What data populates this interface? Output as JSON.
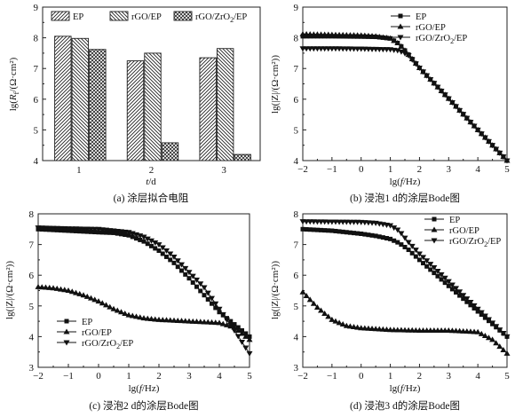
{
  "chart_data": [
    {
      "type": "bar",
      "caption": "(a) 涂层拟合电阻",
      "xlabel_parts": [
        "t",
        "/d"
      ],
      "ylabel_parts": [
        "lg(",
        "R",
        "f",
        "/(Ω·cm²)"
      ],
      "categories": [
        "1",
        "2",
        "3"
      ],
      "series": [
        {
          "name": "EP",
          "values": [
            8.05,
            7.25,
            7.35
          ]
        },
        {
          "name": "rGO/EP",
          "values": [
            7.98,
            7.5,
            7.65
          ]
        },
        {
          "name": "rGO/ZrO2/EP",
          "values": [
            7.62,
            4.58,
            4.2
          ]
        }
      ],
      "legend_names": [
        "EP",
        "rGO/EP",
        "rGO/ZrO₂/EP"
      ],
      "ylim": [
        4,
        9
      ],
      "yticks": [
        "4",
        "5",
        "6",
        "7",
        "8",
        "9"
      ],
      "legend_position": "top"
    },
    {
      "type": "line",
      "caption": "(b) 浸泡1 d的涂层Bode图",
      "xlabel_parts": [
        "lg(",
        "f",
        "/Hz)"
      ],
      "ylabel_parts": [
        "lg(|Z|/(Ω·cm²))"
      ],
      "xlim": [
        -2,
        5
      ],
      "ylim": [
        4,
        9
      ],
      "xticks": [
        "−2",
        "−1",
        "0",
        "1",
        "2",
        "3",
        "4",
        "5"
      ],
      "yticks": [
        "4",
        "5",
        "6",
        "7",
        "8",
        "9"
      ],
      "legend_names": [
        "EP",
        "rGO/EP",
        "rGO/ZrO₂/EP"
      ],
      "legend_position": "top-right",
      "series": [
        {
          "name": "EP",
          "marker": "square",
          "x": [
            -2,
            -1,
            0,
            0.5,
            1,
            1.3,
            1.6,
            2,
            3,
            4,
            5
          ],
          "y": [
            8.05,
            8.05,
            8.04,
            8.03,
            7.98,
            7.8,
            7.48,
            7.02,
            6.02,
            5.0,
            4.0
          ]
        },
        {
          "name": "rGO/EP",
          "marker": "triangle-up",
          "x": [
            -2,
            -1,
            0,
            0.5,
            1,
            1.3,
            1.6,
            2,
            3,
            4,
            5
          ],
          "y": [
            8.12,
            8.1,
            8.08,
            8.05,
            7.98,
            7.8,
            7.48,
            7.02,
            6.02,
            5.0,
            4.0
          ]
        },
        {
          "name": "rGO/ZrO2/EP",
          "marker": "triangle-down",
          "x": [
            -2,
            -1,
            0,
            0.5,
            1,
            1.3,
            1.6,
            2,
            3,
            4,
            5
          ],
          "y": [
            7.65,
            7.65,
            7.64,
            7.63,
            7.62,
            7.58,
            7.45,
            7.02,
            6.02,
            5.0,
            4.0
          ]
        }
      ]
    },
    {
      "type": "line",
      "caption": "(c) 浸泡2 d的涂层Bode图",
      "xlabel_parts": [
        "lg(",
        "f",
        "/Hz)"
      ],
      "ylabel_parts": [
        "lg(|Z|/(Ω·cm²))"
      ],
      "xlim": [
        -2,
        5
      ],
      "ylim": [
        3,
        8
      ],
      "xticks": [
        "−2",
        "−1",
        "0",
        "1",
        "2",
        "3",
        "4",
        "5"
      ],
      "yticks": [
        "3",
        "4",
        "5",
        "6",
        "7",
        "8"
      ],
      "legend_names": [
        "EP",
        "rGO/EP",
        "rGO/ZrO₂/EP"
      ],
      "legend_position": "bottom-left",
      "series": [
        {
          "name": "EP",
          "marker": "square",
          "x": [
            -2,
            -1,
            0,
            0.5,
            1,
            1.5,
            2,
            2.5,
            3,
            3.5,
            4,
            4.5,
            5
          ],
          "y": [
            7.5,
            7.45,
            7.4,
            7.38,
            7.3,
            7.1,
            6.8,
            6.4,
            5.9,
            5.35,
            4.8,
            4.4,
            4.0
          ]
        },
        {
          "name": "rGO/EP",
          "marker": "triangle-up",
          "x": [
            -2,
            -1.5,
            -1,
            -0.5,
            0,
            0.5,
            1,
            1.5,
            2,
            3,
            4,
            4.5,
            5
          ],
          "y": [
            5.62,
            5.58,
            5.5,
            5.35,
            5.15,
            4.9,
            4.7,
            4.6,
            4.55,
            4.5,
            4.45,
            4.3,
            3.9
          ]
        },
        {
          "name": "rGO/ZrO2/EP",
          "marker": "triangle-down",
          "x": [
            -2,
            -1,
            0,
            0.5,
            1,
            1.5,
            2,
            2.5,
            3,
            3.5,
            4,
            4.5,
            5
          ],
          "y": [
            7.55,
            7.52,
            7.5,
            7.45,
            7.4,
            7.25,
            7.0,
            6.6,
            6.1,
            5.6,
            4.9,
            4.2,
            3.45
          ]
        }
      ]
    },
    {
      "type": "line",
      "caption": "(d) 浸泡3 d的涂层Bode图",
      "xlabel_parts": [
        "lg(",
        "f",
        "/Hz)"
      ],
      "ylabel_parts": [
        "lg(|Z|/(Ω·cm²))"
      ],
      "xlim": [
        -2,
        5
      ],
      "ylim": [
        3,
        8
      ],
      "xticks": [
        "−2",
        "−1",
        "0",
        "1",
        "2",
        "3",
        "4",
        "5"
      ],
      "yticks": [
        "3",
        "4",
        "5",
        "6",
        "7",
        "8"
      ],
      "legend_names": [
        "EP",
        "rGO/EP",
        "rGO/ZrO₂/EP"
      ],
      "legend_position": "top-right",
      "series": [
        {
          "name": "EP",
          "marker": "square",
          "x": [
            -2,
            -1,
            0,
            0.5,
            1,
            1.3,
            1.6,
            2,
            3,
            4,
            5
          ],
          "y": [
            7.5,
            7.45,
            7.35,
            7.28,
            7.18,
            7.05,
            6.85,
            6.5,
            5.65,
            4.82,
            4.0
          ]
        },
        {
          "name": "rGO/EP",
          "marker": "triangle-up",
          "x": [
            -2,
            -1.5,
            -1,
            -0.5,
            0,
            1,
            2,
            3,
            4,
            4.5,
            5
          ],
          "y": [
            5.45,
            4.95,
            4.55,
            4.35,
            4.28,
            4.22,
            4.2,
            4.2,
            4.15,
            3.9,
            3.45
          ]
        },
        {
          "name": "rGO/ZrO2/EP",
          "marker": "triangle-down",
          "x": [
            -2,
            -1,
            0,
            0.5,
            1,
            1.3,
            1.6,
            2,
            3,
            4,
            5
          ],
          "y": [
            7.75,
            7.74,
            7.73,
            7.7,
            7.62,
            7.45,
            7.1,
            6.7,
            5.8,
            4.9,
            4.0
          ]
        }
      ]
    }
  ]
}
